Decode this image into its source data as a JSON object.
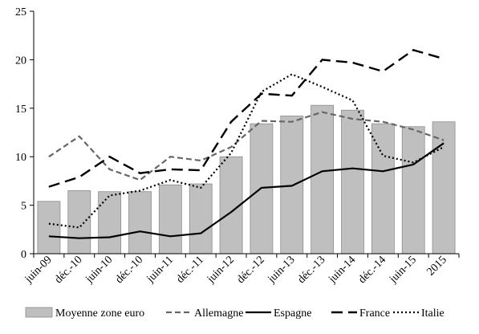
{
  "chart_data": {
    "type": "bar+line",
    "categories": [
      "juin-09",
      "déc.-10",
      "juin-10",
      "déc.-10",
      "juin-11",
      "déc.-11",
      "juin-12",
      "déc.-12",
      "juin-13",
      "déc.-13",
      "juin-14",
      "déc.-14",
      "juin-15",
      "2015"
    ],
    "ylim": [
      0,
      25
    ],
    "yticks": [
      0,
      5,
      10,
      15,
      20,
      25
    ],
    "grid": false,
    "legend_position": "bottom",
    "bars": {
      "name": "Moyenne zone euro",
      "values": [
        5.4,
        6.5,
        6.4,
        6.4,
        7.1,
        7.2,
        10.0,
        13.4,
        14.2,
        15.3,
        14.8,
        13.4,
        13.1,
        13.6
      ],
      "color": "#bfbfbf"
    },
    "series": [
      {
        "name": "Allemagne",
        "style": "dashed-grey",
        "values": [
          10.0,
          12.1,
          8.7,
          7.6,
          10.0,
          9.6,
          11.0,
          13.7,
          13.6,
          14.6,
          13.9,
          13.6,
          12.8,
          11.7
        ]
      },
      {
        "name": "Espagne",
        "style": "solid",
        "values": [
          1.8,
          1.6,
          1.7,
          2.3,
          1.8,
          2.1,
          4.3,
          6.8,
          7.0,
          8.5,
          8.8,
          8.5,
          9.2,
          11.4
        ]
      },
      {
        "name": "France",
        "style": "long-dash",
        "values": [
          6.9,
          7.9,
          10.0,
          8.3,
          8.7,
          8.6,
          13.6,
          16.5,
          16.3,
          20.0,
          19.7,
          18.8,
          21.0,
          20.1
        ]
      },
      {
        "name": "Italie",
        "style": "dotted",
        "values": [
          3.1,
          2.7,
          6.0,
          6.5,
          7.6,
          6.8,
          10.4,
          16.7,
          18.5,
          17.2,
          15.8,
          10.1,
          9.4,
          11.0
        ]
      }
    ]
  }
}
